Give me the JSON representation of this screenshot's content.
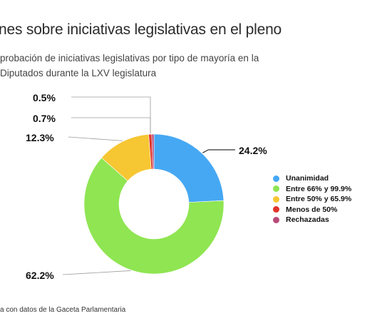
{
  "header": {
    "title": "nes sobre iniciativas legislativas en el pleno",
    "subtitle_line1": "probación de iniciativas legislativas por tipo de mayoría  en la",
    "subtitle_line2": " Diputados durante la LXV legislatura"
  },
  "footer": {
    "source": "a con datos  de la Gaceta Parlamentaria"
  },
  "chart_data": {
    "type": "pie",
    "style": "donut",
    "categories": [
      "Unanimidad",
      "Entre 66% y 99.9%",
      "Entre 50% y 65.9%",
      "Menos de 50%",
      "Rechazadas"
    ],
    "values": [
      24.2,
      62.2,
      12.3,
      0.7,
      0.5
    ],
    "labels": [
      "24.2%",
      "62.2%",
      "12.3%",
      "0.7%",
      "0.5%"
    ],
    "colors": [
      "#46a8f3",
      "#8fe552",
      "#f6c633",
      "#e0342a",
      "#b94a7a"
    ],
    "legend_position": "right",
    "start_angle_deg": 0,
    "direction": "clockwise"
  }
}
